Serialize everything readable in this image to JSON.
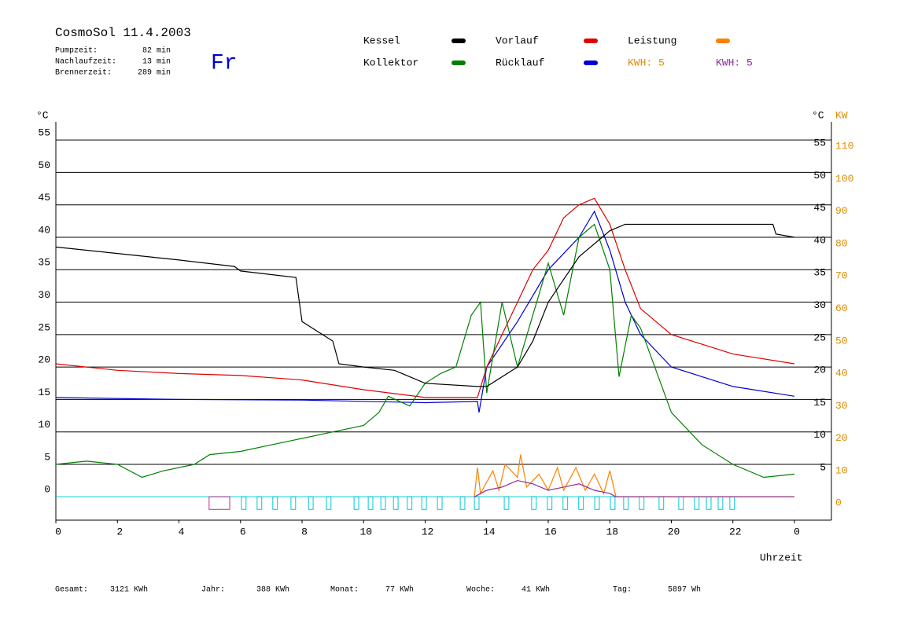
{
  "chart_data": {
    "type": "line",
    "title": "CosmoSol 11.4.2003",
    "weekday": "Fr",
    "stats": [
      {
        "label": "Pumpzeit:",
        "value": "82 min"
      },
      {
        "label": "Nachlaufzeit:",
        "value": "13 min"
      },
      {
        "label": "Brennerzeit:",
        "value": "289 min"
      }
    ],
    "totals": [
      {
        "label": "Gesamt:",
        "value": "3121 KWh"
      },
      {
        "label": "Jahr:",
        "value": "388 KWh"
      },
      {
        "label": "Monat:",
        "value": "77 KWh"
      },
      {
        "label": "Woche:",
        "value": "41 KWh"
      },
      {
        "label": "Tag:",
        "value": "5897 Wh"
      }
    ],
    "kwh_labels": [
      {
        "text": "KWH: 5",
        "color": "#e08a00"
      },
      {
        "text": "KWH: 5",
        "color": "#8b2a9c"
      }
    ],
    "xlabel": "Uhrzeit",
    "ylabel": "°C",
    "y2label": "°C",
    "y2unit": "KW",
    "xlim": [
      0,
      24
    ],
    "xticks": [
      0,
      2,
      4,
      6,
      8,
      10,
      12,
      14,
      16,
      18,
      20,
      22,
      {
        "value": 24,
        "label": "0"
      }
    ],
    "ylim": [
      -3.6,
      57.8
    ],
    "yticks": [
      0,
      5,
      10,
      15,
      20,
      25,
      30,
      35,
      40,
      45,
      50,
      55
    ],
    "y2lim": [
      -7.2,
      115.6
    ],
    "y2ticks": [
      0,
      10,
      20,
      30,
      40,
      50,
      60,
      70,
      80,
      90,
      100,
      110
    ],
    "yticks_right": [
      5,
      10,
      15,
      20,
      25,
      30,
      35,
      40,
      45,
      50,
      55
    ],
    "series": [
      {
        "name": "Kessel",
        "color": "#000000",
        "x": [
          0,
          2,
          4,
          5.8,
          6,
          7.8,
          8,
          8.5,
          9,
          9.2,
          10,
          11,
          12,
          13.7,
          14,
          15,
          15.5,
          16,
          17,
          18,
          18.5,
          20,
          23.3,
          23.4,
          24
        ],
        "values": [
          38.5,
          37.5,
          36.5,
          35.5,
          34.8,
          33.8,
          27,
          25.5,
          24,
          20.5,
          20,
          19.5,
          17.5,
          17,
          17,
          20,
          24,
          30,
          37,
          41,
          42,
          42,
          42,
          40.5,
          40
        ]
      },
      {
        "name": "Kollektor",
        "color": "#008000",
        "x": [
          0,
          1,
          2,
          2.8,
          3.5,
          4.5,
          5,
          6,
          7,
          8,
          9,
          10,
          10.5,
          10.8,
          11.5,
          12,
          12.5,
          13,
          13.5,
          13.8,
          14,
          14.5,
          15,
          15.5,
          16,
          16.5,
          17,
          17.5,
          18,
          18.3,
          18.7,
          19,
          20,
          21,
          22,
          23,
          24
        ],
        "values": [
          5,
          5.5,
          5,
          3,
          4,
          5,
          6.5,
          7,
          8,
          9,
          10,
          11,
          13,
          15.5,
          14,
          17.5,
          19,
          20,
          28,
          30,
          16,
          30,
          20,
          28,
          36,
          28,
          40,
          42,
          35,
          18.5,
          28,
          26,
          13,
          8,
          5,
          3,
          3.5
        ]
      },
      {
        "name": "Vorlauf",
        "color": "#e00000",
        "x": [
          0,
          2,
          4,
          6,
          8,
          10,
          12,
          13.7,
          14,
          14.5,
          15,
          15.5,
          16,
          16.5,
          17,
          17.5,
          18,
          18.5,
          19,
          20,
          22,
          24
        ],
        "values": [
          20.5,
          19.5,
          19,
          18.7,
          18,
          16.5,
          15.3,
          15.3,
          20,
          25,
          30,
          35,
          38,
          43,
          45,
          46,
          42,
          35,
          29,
          25,
          22,
          20.5
        ]
      },
      {
        "name": "Rücklauf",
        "color": "#0000d0",
        "x": [
          0,
          4,
          8,
          12,
          13.7,
          13.75,
          14,
          15,
          16,
          17,
          17.5,
          18,
          18.5,
          19,
          20,
          22,
          24
        ],
        "values": [
          15.3,
          15,
          14.9,
          14.5,
          14.7,
          13,
          20,
          27,
          35,
          40,
          44,
          38,
          30,
          25,
          20,
          17,
          15.5
        ]
      },
      {
        "name": "Leistung",
        "color": "#ff8000",
        "axis": "y2",
        "x": [
          13.6,
          13.7,
          13.8,
          14.2,
          14.4,
          14.6,
          15,
          15.1,
          15.3,
          15.7,
          16,
          16.3,
          16.5,
          16.9,
          17.2,
          17.5,
          17.8,
          18,
          18.2,
          24
        ],
        "values": [
          0,
          9,
          1,
          8,
          2,
          10,
          6,
          13,
          3,
          7,
          2,
          9,
          2,
          9,
          2,
          7,
          1,
          8,
          0,
          0
        ]
      },
      {
        "color": "#8b2a9c",
        "axis": "y2",
        "x": [
          13.6,
          14,
          14.5,
          15,
          15.5,
          16,
          16.5,
          17,
          17.5,
          18,
          18.2,
          24
        ],
        "values": [
          0,
          2,
          3,
          5,
          4,
          2,
          3,
          4,
          2,
          1,
          0,
          0
        ]
      }
    ],
    "pump_color": "#00c8d8",
    "pulse_width": 0.15,
    "pump_pulses": [
      6.03,
      6.54,
      7.05,
      7.64,
      8.21,
      8.79,
      9.69,
      10.15,
      10.56,
      10.97,
      11.42,
      11.89,
      12.4,
      13.14,
      13.6,
      14.57,
      15.46,
      15.97,
      16.48,
      16.99,
      17.51,
      18.02,
      18.45,
      18.96,
      19.6,
      20.24,
      20.75,
      21.14,
      21.52,
      21.9
    ],
    "burner_color": "#c03080",
    "burner_pulses": [
      [
        4.98,
        5.65
      ]
    ]
  }
}
